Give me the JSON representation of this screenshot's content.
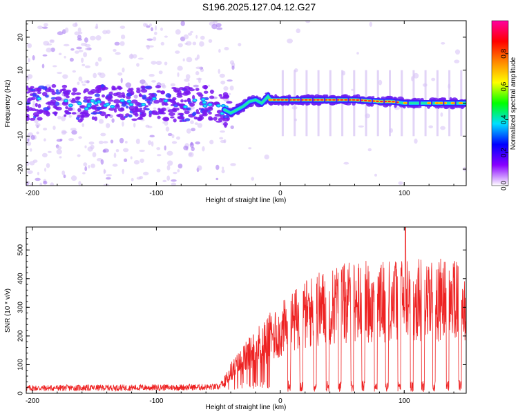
{
  "title": "S196.2025.127.04.12.G27",
  "chart_data": [
    {
      "type": "heatmap",
      "xlabel": "Height of straight line (km)",
      "ylabel": "Frequency (Hz)",
      "xlim": [
        -205,
        150
      ],
      "ylim": [
        -25,
        25
      ],
      "xticks": [
        -200,
        -100,
        0,
        100
      ],
      "yticks": [
        -20,
        -10,
        0,
        10,
        20
      ],
      "trace": [
        [
          -200,
          0
        ],
        [
          -180,
          0.5
        ],
        [
          -160,
          -0.5
        ],
        [
          -140,
          0.5
        ],
        [
          -120,
          -0.3
        ],
        [
          -100,
          0.2
        ],
        [
          -80,
          -0.5
        ],
        [
          -60,
          0
        ],
        [
          -50,
          -1
        ],
        [
          -40,
          -3
        ],
        [
          -35,
          -2
        ],
        [
          -30,
          -1
        ],
        [
          -25,
          0.5
        ],
        [
          -20,
          1
        ],
        [
          -15,
          0
        ],
        [
          -10,
          2
        ],
        [
          -8,
          1
        ],
        [
          0,
          1
        ],
        [
          20,
          1
        ],
        [
          40,
          1
        ],
        [
          60,
          1
        ],
        [
          80,
          0.5
        ],
        [
          90,
          0.5
        ],
        [
          100,
          0
        ],
        [
          120,
          0
        ],
        [
          150,
          0
        ]
      ],
      "colorbar": {
        "label": "Normalized spectral amplitude",
        "range": [
          0,
          1
        ],
        "ticks": [
          "0.0",
          "0.2",
          "0.4",
          "0.6",
          "0.8"
        ],
        "tick_values": [
          0,
          0.2,
          0.4,
          0.6,
          0.8
        ],
        "colors": [
          "#ffffff",
          "#8800ff",
          "#0000ff",
          "#00e0ff",
          "#00ff00",
          "#ffff00",
          "#ff8800",
          "#ff0000",
          "#ff00a0"
        ]
      }
    },
    {
      "type": "line",
      "xlabel": "Height of straight line (km)",
      "ylabel": "SNR (10 * v/v)",
      "xlim": [
        -205,
        150
      ],
      "ylim": [
        0,
        580
      ],
      "xticks": [
        -200,
        -100,
        0,
        100
      ],
      "yticks": [
        0,
        100,
        200,
        300,
        400,
        500
      ],
      "color": "#ee2222",
      "profile": [
        [
          -205,
          18
        ],
        [
          -100,
          20
        ],
        [
          -50,
          22
        ],
        [
          -45,
          50
        ],
        [
          -40,
          90
        ],
        [
          -30,
          140
        ],
        [
          -20,
          190
        ],
        [
          -10,
          230
        ],
        [
          0,
          260
        ],
        [
          10,
          300
        ],
        [
          20,
          330
        ],
        [
          30,
          355
        ],
        [
          40,
          370
        ],
        [
          50,
          380
        ],
        [
          60,
          385
        ],
        [
          80,
          390
        ],
        [
          100,
          400
        ],
        [
          120,
          395
        ],
        [
          140,
          390
        ],
        [
          150,
          380
        ]
      ],
      "dips": [
        7,
        17,
        28,
        38,
        48,
        58,
        67,
        77,
        86,
        96,
        106,
        115,
        124,
        135,
        145
      ],
      "spike": {
        "x": 101,
        "y": 590
      }
    }
  ]
}
